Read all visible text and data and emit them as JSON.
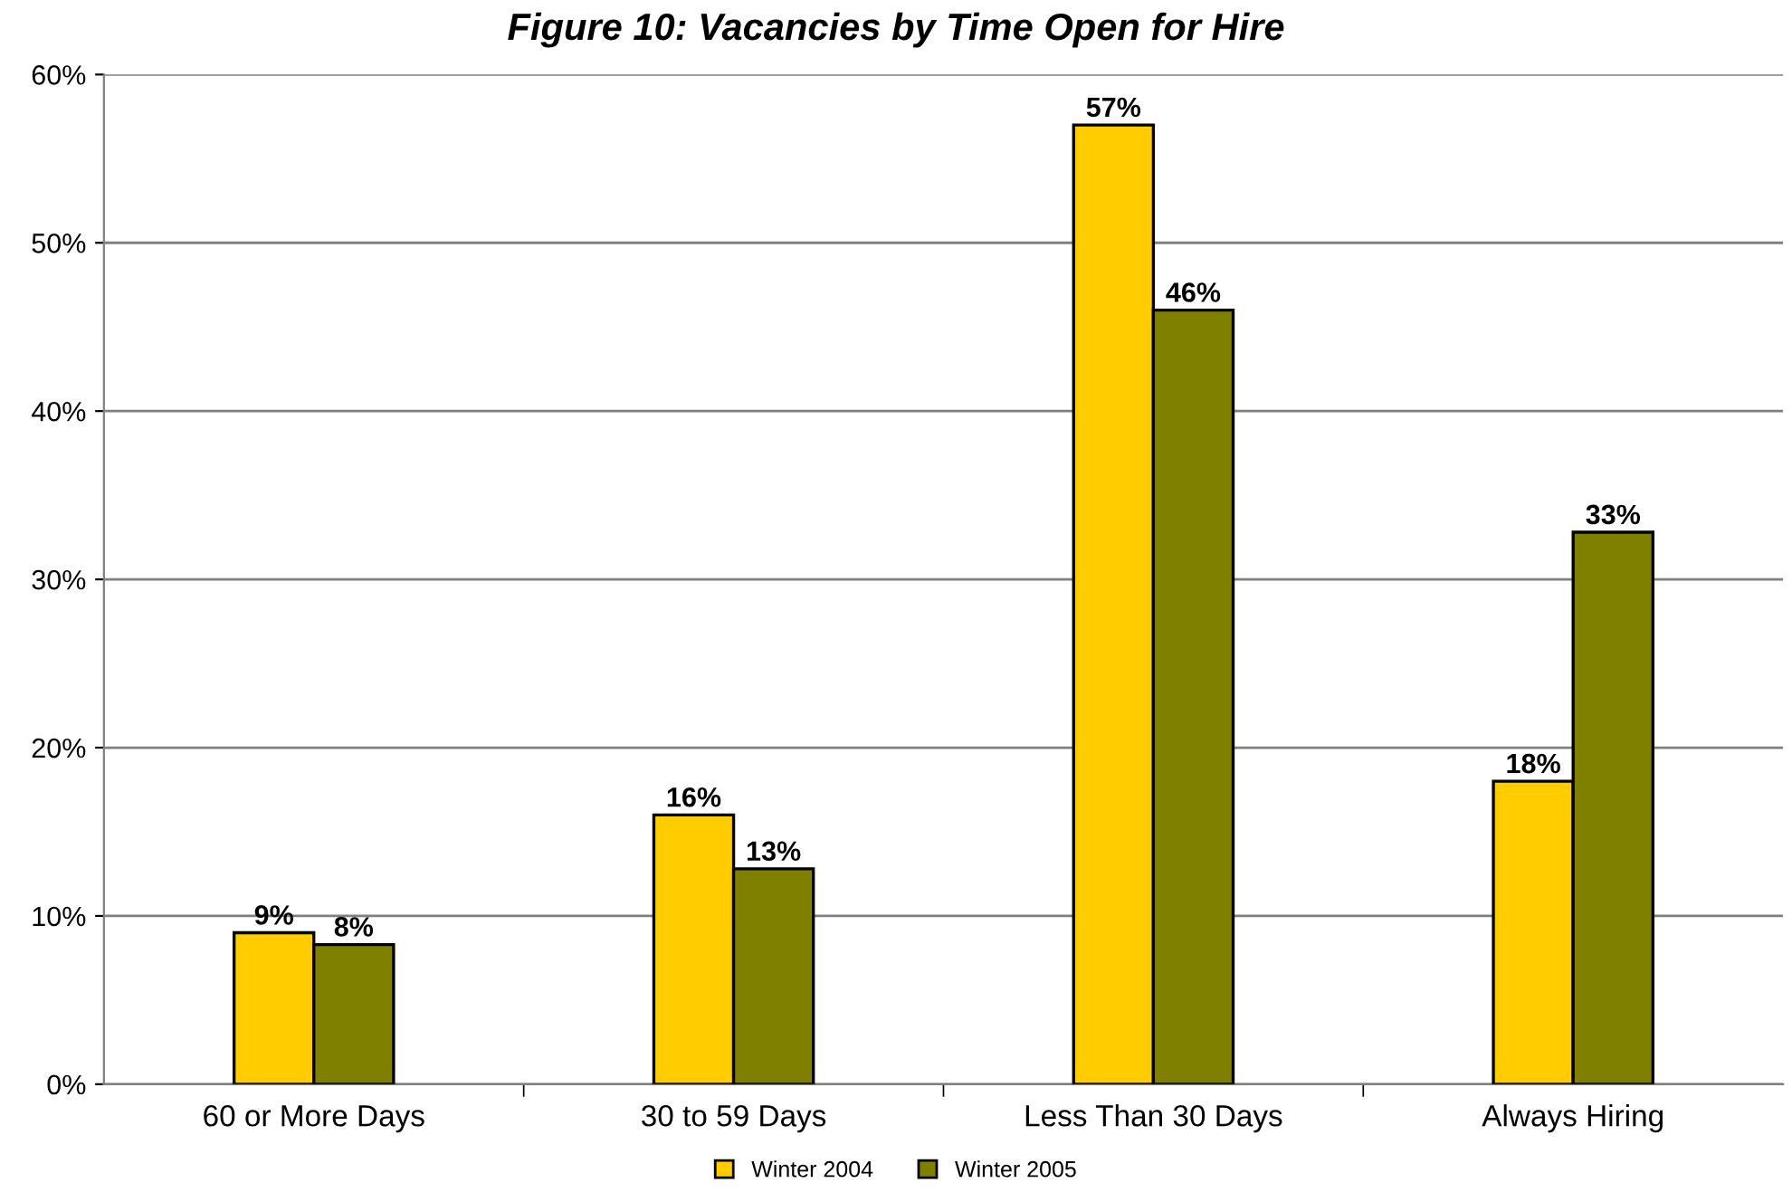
{
  "chart_data": {
    "type": "bar",
    "title": "Figure 10: Vacancies by Time Open for Hire",
    "categories": [
      "60 or More Days",
      "30 to 59 Days",
      "Less Than 30 Days",
      "Always Hiring"
    ],
    "series": [
      {
        "name": "Winter 2004",
        "color": "#ffcc00",
        "values": [
          9,
          16,
          57,
          18
        ],
        "value_labels": [
          "9%",
          "16%",
          "57%",
          "18%"
        ]
      },
      {
        "name": "Winter 2005",
        "color": "#808000",
        "values": [
          8.3,
          12.8,
          46,
          32.8
        ],
        "value_labels": [
          "8%",
          "13%",
          "46%",
          "33%"
        ]
      }
    ],
    "ylim": [
      0,
      60
    ],
    "yticks": [
      {
        "value": 0,
        "label": "0%"
      },
      {
        "value": 10,
        "label": "10%"
      },
      {
        "value": 20,
        "label": "20%"
      },
      {
        "value": 30,
        "label": "30%"
      },
      {
        "value": 40,
        "label": "40%"
      },
      {
        "value": 50,
        "label": "50%"
      },
      {
        "value": 60,
        "label": "60%"
      }
    ],
    "grid": "y",
    "legend": "bottom"
  }
}
